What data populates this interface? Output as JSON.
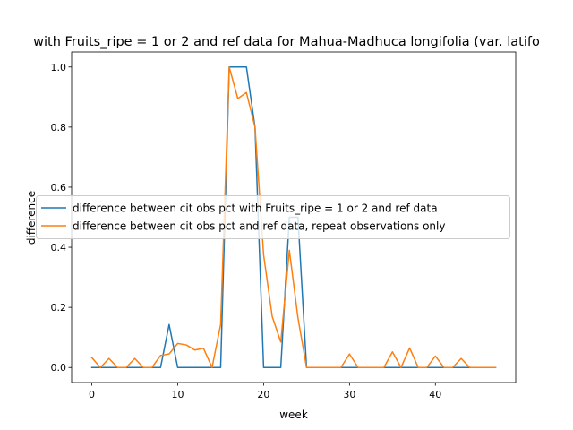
{
  "chart_data": {
    "type": "line",
    "title": "with Fruits_ripe = 1 or 2 and ref data for Mahua-Madhuca longifolia (var. latifo",
    "xlabel": "week",
    "ylabel": "difference",
    "xlim": [
      -2.35,
      49.35
    ],
    "ylim": [
      -0.05,
      1.05
    ],
    "xticks": [
      0,
      10,
      20,
      30,
      40
    ],
    "yticks": [
      0.0,
      0.2,
      0.4,
      0.6,
      0.8,
      1.0
    ],
    "xtick_labels": [
      "0",
      "10",
      "20",
      "30",
      "40"
    ],
    "ytick_labels": [
      "0.0",
      "0.2",
      "0.4",
      "0.6",
      "0.8",
      "1.0"
    ],
    "grid": false,
    "legend_position": "center",
    "x": [
      0,
      1,
      2,
      3,
      4,
      5,
      6,
      7,
      8,
      9,
      10,
      11,
      12,
      13,
      14,
      15,
      16,
      17,
      18,
      19,
      20,
      21,
      22,
      23,
      24,
      25,
      26,
      27,
      28,
      29,
      30,
      31,
      32,
      33,
      34,
      35,
      36,
      37,
      38,
      39,
      40,
      41,
      42,
      43,
      44,
      45,
      46,
      47
    ],
    "series": [
      {
        "name": "difference between cit obs pct with Fruits_ripe = 1 or 2 and ref data",
        "color": "#1f77b4",
        "values": [
          0,
          0,
          0,
          0,
          0,
          0,
          0,
          0,
          0,
          0.143,
          0,
          0,
          0,
          0,
          0,
          0,
          1.0,
          1.0,
          1.0,
          0.8,
          0,
          0,
          0,
          0.5,
          0.5,
          0,
          0,
          0,
          0,
          0,
          0,
          0,
          0,
          0,
          0,
          0,
          0,
          0,
          0,
          0,
          0,
          0,
          0,
          0,
          0,
          0,
          0,
          0
        ]
      },
      {
        "name": "difference between cit obs pct and ref data, repeat observations only",
        "color": "#ff7f0e",
        "values": [
          0.033,
          0,
          0.03,
          0,
          0,
          0.03,
          0,
          0,
          0.04,
          0.045,
          0.08,
          0.075,
          0.058,
          0.064,
          0,
          0.143,
          1.0,
          0.895,
          0.915,
          0.8,
          0.375,
          0.17,
          0.085,
          0.39,
          0.165,
          0,
          0,
          0,
          0,
          0,
          0.045,
          0,
          0,
          0,
          0,
          0.052,
          0,
          0.065,
          0,
          0,
          0.038,
          0,
          0,
          0.03,
          0,
          0,
          0,
          0
        ]
      }
    ]
  }
}
